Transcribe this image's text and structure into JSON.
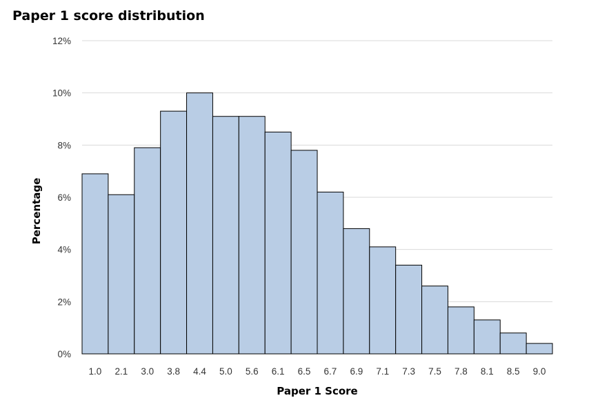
{
  "chart_data": {
    "type": "bar",
    "title": "Paper 1 score distribution",
    "xlabel": "Paper 1 Score",
    "ylabel": "Percentage",
    "categories": [
      "1.0",
      "2.1",
      "3.0",
      "3.8",
      "4.4",
      "5.0",
      "5.6",
      "6.1",
      "6.5",
      "6.7",
      "6.9",
      "7.1",
      "7.3",
      "7.5",
      "7.8",
      "8.1",
      "8.5",
      "9.0"
    ],
    "values": [
      6.9,
      6.1,
      7.9,
      9.3,
      10.0,
      9.1,
      9.1,
      8.5,
      7.8,
      6.2,
      4.8,
      4.1,
      3.4,
      2.6,
      1.8,
      1.3,
      0.8,
      0.4
    ],
    "ylim": [
      0,
      12
    ],
    "yticks": [
      "0%",
      "2%",
      "4%",
      "6%",
      "8%",
      "10%",
      "12%"
    ],
    "ytick_values": [
      0,
      2,
      4,
      6,
      8,
      10,
      12
    ],
    "grid": true,
    "colors": {
      "bar_fill": "#b9cde5",
      "bar_stroke": "#000000",
      "grid": "#d9d9d9"
    }
  }
}
